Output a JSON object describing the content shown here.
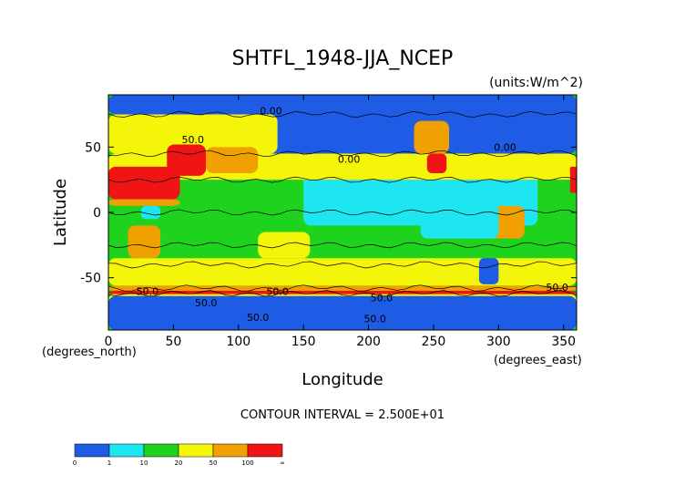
{
  "chart_data": {
    "type": "heatmap",
    "title": "SHTFL_1948-JJA_NCEP",
    "units": "(units:W/m^2)",
    "xlabel": "Longitude",
    "ylabel": "Latitude",
    "x_unit_note": "(degrees_east)",
    "y_unit_note": "(degrees_north)",
    "xlim": [
      0,
      360
    ],
    "ylim": [
      -90,
      90
    ],
    "x_ticks": [
      0,
      50,
      100,
      150,
      200,
      250,
      300,
      350
    ],
    "y_ticks": [
      -50,
      0,
      50
    ],
    "contour_interval_text": "CONTOUR INTERVAL = 2.500E+01",
    "contour_labels": [
      {
        "text": "0.00",
        "lon": 125,
        "lat": 75
      },
      {
        "text": "50.0",
        "lon": 65,
        "lat": 53
      },
      {
        "text": "0.00",
        "lon": 185,
        "lat": 38
      },
      {
        "text": "0.00",
        "lon": 305,
        "lat": 47
      },
      {
        "text": "50.0",
        "lon": 30,
        "lat": -63
      },
      {
        "text": "50.0",
        "lon": 130,
        "lat": -63
      },
      {
        "text": "50.0",
        "lon": 210,
        "lat": -68
      },
      {
        "text": "50.0",
        "lon": 345,
        "lat": -60
      },
      {
        "text": "50.0",
        "lon": 75,
        "lat": -72
      },
      {
        "text": "50.0",
        "lon": 115,
        "lat": -83
      },
      {
        "text": "50.0",
        "lon": 205,
        "lat": -84
      }
    ],
    "colorbar": {
      "boundaries": [
        "0",
        "1",
        "10",
        "20",
        "50",
        "100",
        "∞"
      ],
      "colors": [
        "#1f5ce6",
        "#1ee6f0",
        "#1ed21e",
        "#f5f50a",
        "#f0a000",
        "#f01414"
      ]
    },
    "regions": [
      {
        "class": 3,
        "lon": [
          0,
          360
        ],
        "lat": [
          -90,
          -62
        ]
      },
      {
        "class": 0,
        "lon": [
          0,
          360
        ],
        "lat": [
          -90,
          -64
        ]
      },
      {
        "class": 5,
        "lon": [
          0,
          360
        ],
        "lat": [
          -62.5,
          -60
        ]
      },
      {
        "class": 4,
        "lon": [
          0,
          360
        ],
        "lat": [
          -60,
          -56
        ]
      },
      {
        "class": 3,
        "lon": [
          0,
          360
        ],
        "lat": [
          -56,
          -35
        ]
      },
      {
        "class": 2,
        "lon": [
          0,
          360
        ],
        "lat": [
          -35,
          25
        ]
      },
      {
        "class": 1,
        "lon": [
          150,
          330
        ],
        "lat": [
          -10,
          30
        ]
      },
      {
        "class": 3,
        "lon": [
          0,
          360
        ],
        "lat": [
          25,
          45
        ]
      },
      {
        "class": 0,
        "lon": [
          120,
          360
        ],
        "lat": [
          45,
          90
        ]
      },
      {
        "class": 3,
        "lon": [
          0,
          130
        ],
        "lat": [
          45,
          75
        ]
      },
      {
        "class": 0,
        "lon": [
          0,
          360
        ],
        "lat": [
          75,
          90
        ]
      },
      {
        "class": 5,
        "lon": [
          0,
          55
        ],
        "lat": [
          10,
          35
        ]
      },
      {
        "class": 4,
        "lon": [
          0,
          55
        ],
        "lat": [
          5,
          10
        ]
      },
      {
        "class": 5,
        "lon": [
          45,
          75
        ],
        "lat": [
          28,
          52
        ]
      },
      {
        "class": 4,
        "lon": [
          75,
          115
        ],
        "lat": [
          30,
          50
        ]
      },
      {
        "class": 2,
        "lon": [
          8,
          40
        ],
        "lat": [
          -20,
          5
        ]
      },
      {
        "class": 4,
        "lon": [
          15,
          40
        ],
        "lat": [
          -35,
          -10
        ]
      },
      {
        "class": 3,
        "lon": [
          115,
          155
        ],
        "lat": [
          -35,
          -15
        ]
      },
      {
        "class": 4,
        "lon": [
          235,
          262
        ],
        "lat": [
          45,
          70
        ]
      },
      {
        "class": 5,
        "lon": [
          245,
          260
        ],
        "lat": [
          30,
          45
        ]
      },
      {
        "class": 4,
        "lon": [
          285,
          320
        ],
        "lat": [
          -20,
          5
        ]
      },
      {
        "class": 0,
        "lon": [
          285,
          300
        ],
        "lat": [
          -55,
          -35
        ]
      },
      {
        "class": 5,
        "lon": [
          355,
          360
        ],
        "lat": [
          15,
          35
        ]
      },
      {
        "class": 1,
        "lon": [
          25,
          40
        ],
        "lat": [
          -5,
          5
        ]
      },
      {
        "class": 1,
        "lon": [
          240,
          300
        ],
        "lat": [
          -20,
          10
        ]
      }
    ]
  }
}
